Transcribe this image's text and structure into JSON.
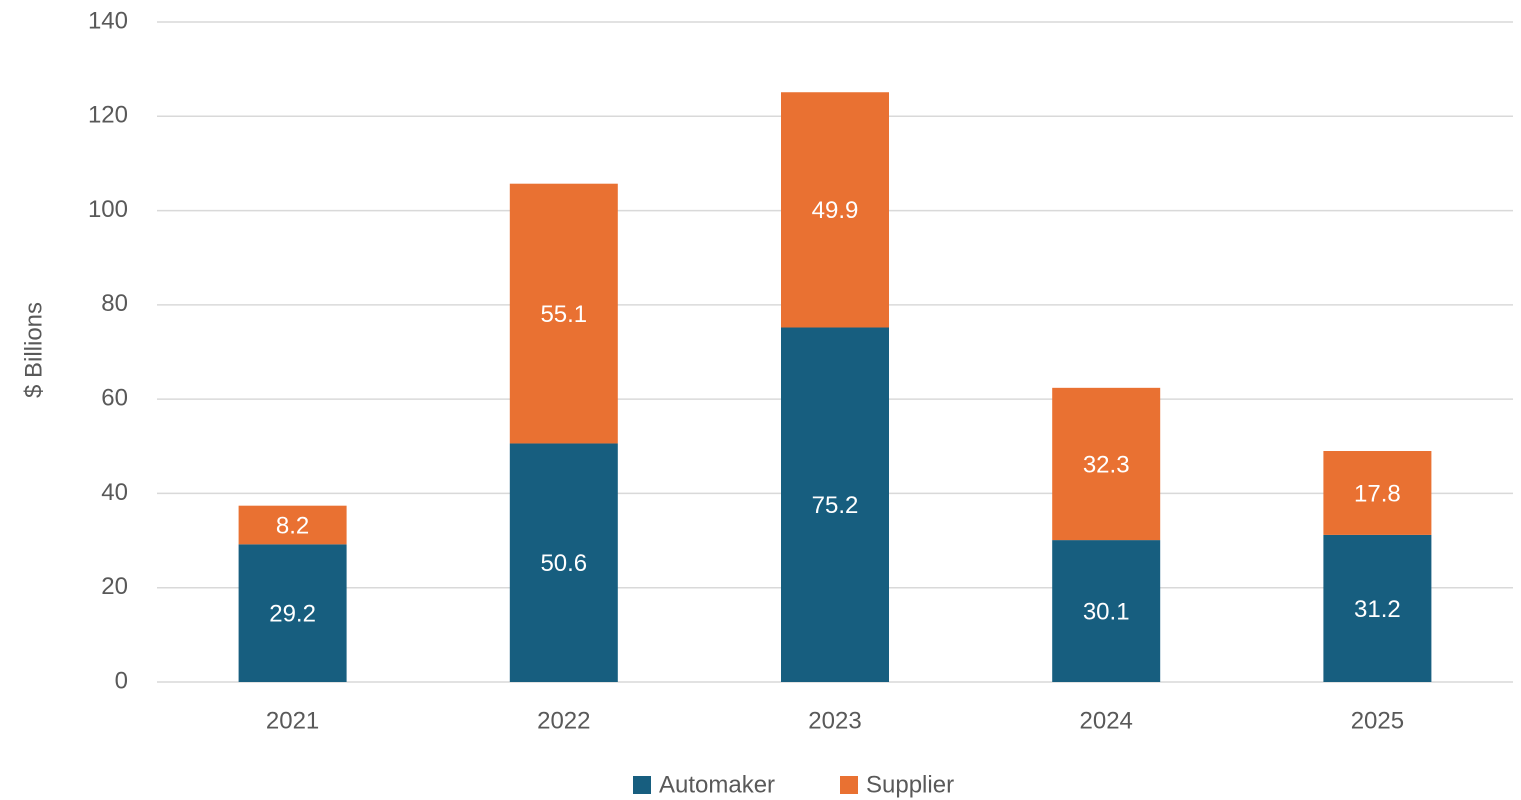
{
  "chart_data": {
    "type": "stacked_bar",
    "y_label": "$ Billions",
    "categories": [
      "2021",
      "2022",
      "2023",
      "2024",
      "2025"
    ],
    "series": [
      {
        "name": "Automaker",
        "color": "#175e7f",
        "values": [
          29.2,
          50.6,
          75.2,
          30.1,
          31.2
        ]
      },
      {
        "name": "Supplier",
        "color": "#e97132",
        "values": [
          8.2,
          55.1,
          49.9,
          32.3,
          17.8
        ]
      }
    ],
    "ylim": [
      0,
      140
    ],
    "yticks": [
      0,
      20,
      40,
      60,
      80,
      100,
      120,
      140
    ],
    "grid": true,
    "legend": "bottom"
  }
}
